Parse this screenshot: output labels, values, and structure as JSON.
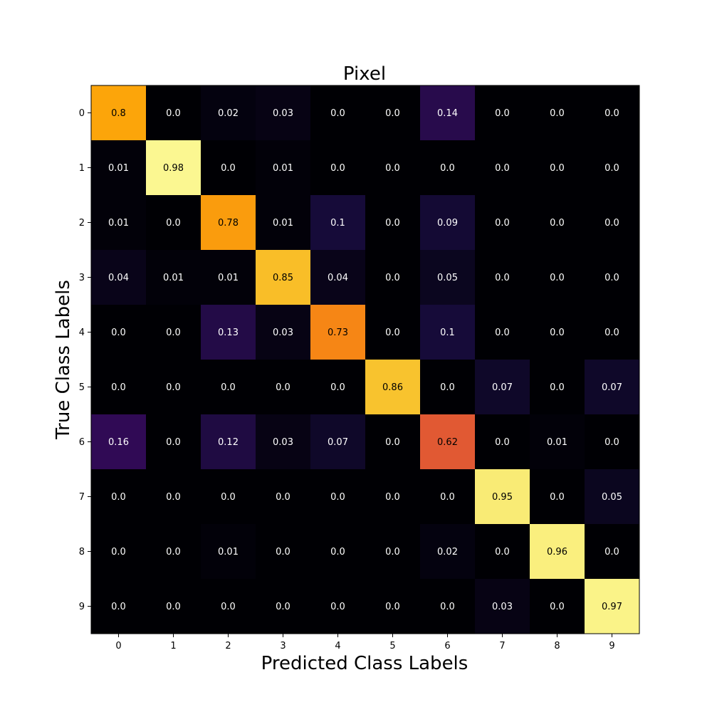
{
  "chart_data": {
    "type": "heatmap",
    "title": "Pixel",
    "xlabel": "Predicted Class Labels",
    "ylabel": "True Class Labels",
    "x_categories": [
      "0",
      "1",
      "2",
      "3",
      "4",
      "5",
      "6",
      "7",
      "8",
      "9"
    ],
    "y_categories": [
      "0",
      "1",
      "2",
      "3",
      "4",
      "5",
      "6",
      "7",
      "8",
      "9"
    ],
    "values": [
      [
        0.8,
        0.0,
        0.02,
        0.03,
        0.0,
        0.0,
        0.14,
        0.0,
        0.0,
        0.0
      ],
      [
        0.01,
        0.98,
        0.0,
        0.01,
        0.0,
        0.0,
        0.0,
        0.0,
        0.0,
        0.0
      ],
      [
        0.01,
        0.0,
        0.78,
        0.01,
        0.1,
        0.0,
        0.09,
        0.0,
        0.0,
        0.0
      ],
      [
        0.04,
        0.01,
        0.01,
        0.85,
        0.04,
        0.0,
        0.05,
        0.0,
        0.0,
        0.0
      ],
      [
        0.0,
        0.0,
        0.13,
        0.03,
        0.73,
        0.0,
        0.1,
        0.0,
        0.0,
        0.0
      ],
      [
        0.0,
        0.0,
        0.0,
        0.0,
        0.0,
        0.86,
        0.0,
        0.07,
        0.0,
        0.07
      ],
      [
        0.16,
        0.0,
        0.12,
        0.03,
        0.07,
        0.0,
        0.62,
        0.0,
        0.01,
        0.0
      ],
      [
        0.0,
        0.0,
        0.0,
        0.0,
        0.0,
        0.0,
        0.0,
        0.95,
        0.0,
        0.05
      ],
      [
        0.0,
        0.0,
        0.01,
        0.0,
        0.0,
        0.0,
        0.02,
        0.0,
        0.96,
        0.0
      ],
      [
        0.0,
        0.0,
        0.0,
        0.0,
        0.0,
        0.0,
        0.0,
        0.03,
        0.0,
        0.97
      ]
    ],
    "colormap": "inferno",
    "value_range": [
      0,
      1
    ],
    "grid": false,
    "legend": "none"
  }
}
